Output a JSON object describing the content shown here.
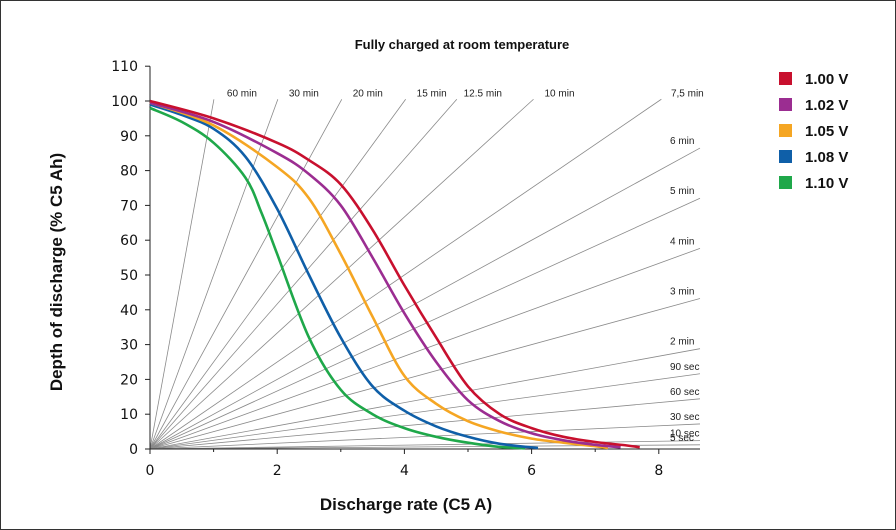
{
  "chart_data": {
    "type": "line",
    "title": "Fully charged at room temperature",
    "xlabel": "Discharge rate (C5 A)",
    "ylabel": "Depth of discharge (% C5 Ah)",
    "xlim": [
      0,
      8.6
    ],
    "ylim": [
      0,
      110
    ],
    "x_ticks": [
      "0",
      "2",
      "4",
      "6",
      "8"
    ],
    "y_ticks": [
      "0",
      "10",
      "20",
      "30",
      "40",
      "50",
      "60",
      "70",
      "80",
      "90",
      "100",
      "110"
    ],
    "grid": false,
    "legend_position": "right",
    "series": [
      {
        "name": "1.00 V",
        "color": "#c8102e",
        "x": [
          0,
          1,
          2,
          2.5,
          3,
          3.5,
          4,
          4.5,
          5,
          5.5,
          6,
          6.5,
          7,
          7.5,
          7.7
        ],
        "y": [
          100,
          95,
          88,
          83,
          76,
          63,
          47,
          32,
          18,
          10,
          6,
          3.5,
          2,
          1,
          0.5
        ]
      },
      {
        "name": "1.02 V",
        "color": "#9b2d91",
        "x": [
          0,
          1,
          2,
          2.5,
          3,
          3.5,
          4,
          4.5,
          5,
          5.5,
          6,
          6.5,
          7,
          7.4
        ],
        "y": [
          99.5,
          94,
          85,
          79,
          70,
          55,
          39,
          25,
          14,
          8,
          4.5,
          2.5,
          1.2,
          0.5
        ]
      },
      {
        "name": "1.05 V",
        "color": "#f5a623",
        "x": [
          0,
          1,
          2,
          2.5,
          3,
          3.5,
          4,
          4.5,
          5,
          5.5,
          6,
          6.5,
          7,
          7.2
        ],
        "y": [
          99.5,
          93,
          81,
          72,
          56,
          38,
          21,
          13,
          8,
          5,
          3,
          1.8,
          0.8,
          0.3
        ]
      },
      {
        "name": "1.08 V",
        "color": "#0f5fa8",
        "x": [
          0,
          0.5,
          1,
          1.5,
          2,
          2.5,
          3,
          3.5,
          4,
          4.5,
          5,
          5.5,
          6.1
        ],
        "y": [
          99,
          96,
          92,
          84,
          69,
          50,
          32,
          18,
          11,
          6.5,
          3.5,
          1.5,
          0.3
        ]
      },
      {
        "name": "1.10 V",
        "color": "#1fa84a",
        "x": [
          0,
          0.5,
          1,
          1.5,
          1.75,
          2,
          2.5,
          3,
          3.5,
          4,
          4.5,
          5,
          5.5,
          5.9
        ],
        "y": [
          98,
          94,
          88,
          78,
          68,
          56,
          32,
          17,
          10,
          6,
          3.5,
          1.8,
          0.6,
          0.2
        ]
      }
    ],
    "time_lines": [
      {
        "label": "60 min",
        "slope": 100
      },
      {
        "label": "30 min",
        "slope": 50
      },
      {
        "label": "20 min",
        "slope": 33.333
      },
      {
        "label": "15 min",
        "slope": 25
      },
      {
        "label": "12.5 min",
        "slope": 20.833
      },
      {
        "label": "10 min",
        "slope": 16.667
      },
      {
        "label": "7,5 min",
        "slope": 12.5
      },
      {
        "label": "6 min",
        "slope": 10
      },
      {
        "label": "5 min",
        "slope": 8.333
      },
      {
        "label": "4 min",
        "slope": 6.667
      },
      {
        "label": "3 min",
        "slope": 5
      },
      {
        "label": "2 min",
        "slope": 3.333
      },
      {
        "label": "90 sec",
        "slope": 2.5
      },
      {
        "label": "60 sec",
        "slope": 1.667
      },
      {
        "label": "30 sec",
        "slope": 0.833
      },
      {
        "label": "10 sec",
        "slope": 0.278
      },
      {
        "label": "5 sec",
        "slope": 0.139
      }
    ]
  }
}
